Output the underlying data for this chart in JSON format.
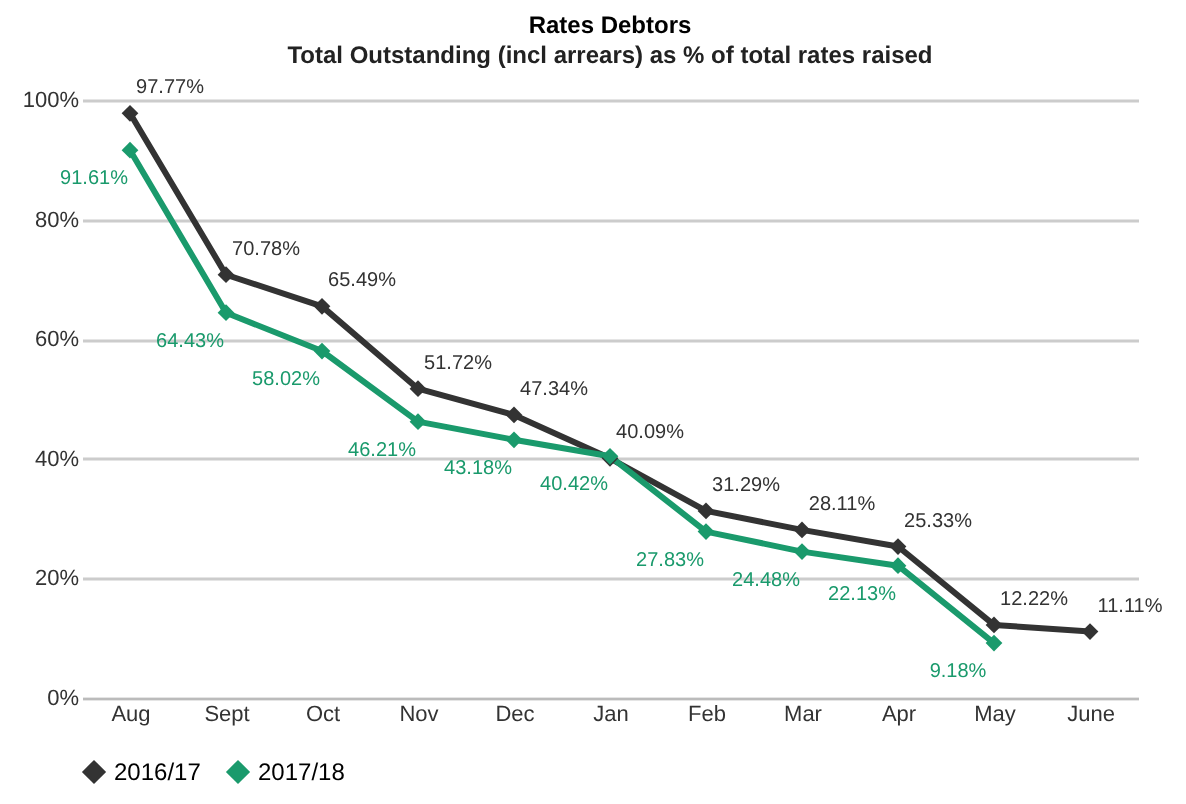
{
  "chart_data": {
    "type": "line",
    "title": "Rates Debtors",
    "subtitle": "Total Outstanding (incl arrears) as % of total rates raised",
    "categories": [
      "Aug",
      "Sept",
      "Oct",
      "Nov",
      "Dec",
      "Jan",
      "Feb",
      "Mar",
      "Apr",
      "May",
      "June"
    ],
    "series": [
      {
        "name": "2016/17",
        "color": "#333333",
        "values": [
          97.77,
          70.78,
          65.49,
          51.72,
          47.34,
          40.09,
          31.29,
          28.11,
          25.33,
          12.22,
          11.11
        ],
        "value_labels": [
          "97.77%",
          "70.78%",
          "65.49%",
          "51.72%",
          "47.34%",
          "40.09%",
          "31.29%",
          "28.11%",
          "25.33%",
          "12.22%",
          "11.11%"
        ]
      },
      {
        "name": "2017/18",
        "color": "#1a9a6c",
        "values": [
          91.61,
          64.43,
          58.02,
          46.21,
          43.18,
          40.42,
          27.83,
          24.48,
          22.13,
          9.18,
          null
        ],
        "value_labels": [
          "91.61%",
          "64.43%",
          "58.02%",
          "46.21%",
          "43.18%",
          "40.42%",
          "27.83%",
          "24.48%",
          "22.13%",
          "9.18%",
          null
        ]
      }
    ],
    "ylim": [
      0,
      100
    ],
    "yticks": [
      {
        "value": 0,
        "label": "0%"
      },
      {
        "value": 20,
        "label": "20%"
      },
      {
        "value": 40,
        "label": "40%"
      },
      {
        "value": 60,
        "label": "60%"
      },
      {
        "value": 80,
        "label": "80%"
      },
      {
        "value": 100,
        "label": "100%"
      }
    ],
    "grid": "y",
    "legend": "bottom",
    "marker": "diamond",
    "line_style": "solid"
  }
}
